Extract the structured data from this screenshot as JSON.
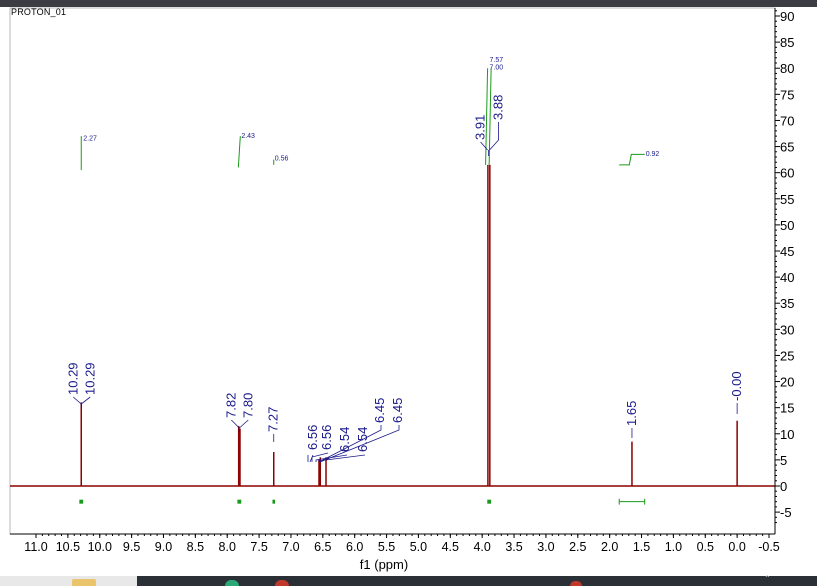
{
  "window": {
    "title": "PROTON_01"
  },
  "chart_data": {
    "type": "line",
    "xlabel": "f1 (ppm)",
    "ylabel": "",
    "xlim": [
      11.25,
      -0.75
    ],
    "ylim": [
      -7,
      91
    ],
    "x_ticks": [
      "11.0",
      "10.5",
      "10.0",
      "9.5",
      "9.0",
      "8.5",
      "8.0",
      "7.5",
      "7.0",
      "6.5",
      "6.0",
      "5.5",
      "5.0",
      "4.5",
      "4.0",
      "3.5",
      "3.0",
      "2.5",
      "2.0",
      "1.5",
      "1.0",
      "0.5",
      "0.0",
      "-0.5"
    ],
    "x_tick_values": [
      11.0,
      10.5,
      10.0,
      9.5,
      9.0,
      8.5,
      8.0,
      7.5,
      7.0,
      6.5,
      6.0,
      5.5,
      5.0,
      4.5,
      4.0,
      3.5,
      3.0,
      2.5,
      2.0,
      1.5,
      1.0,
      0.5,
      0.0,
      -0.5
    ],
    "y_ticks": [
      "90",
      "85",
      "80",
      "75",
      "70",
      "65",
      "60",
      "55",
      "50",
      "45",
      "40",
      "35",
      "30",
      "25",
      "20",
      "15",
      "10",
      "5",
      "0",
      "-5"
    ],
    "y_tick_values": [
      90,
      85,
      80,
      75,
      70,
      65,
      60,
      55,
      50,
      45,
      40,
      35,
      30,
      25,
      20,
      15,
      10,
      5,
      0,
      -5
    ],
    "grid": false,
    "peaks": [
      {
        "ppm": 10.29,
        "intensity": 16.0
      },
      {
        "ppm": 7.82,
        "intensity": 11.5
      },
      {
        "ppm": 7.8,
        "intensity": 11.0
      },
      {
        "ppm": 7.27,
        "intensity": 6.5
      },
      {
        "ppm": 6.56,
        "intensity": 5.0
      },
      {
        "ppm": 6.54,
        "intensity": 5.5
      },
      {
        "ppm": 6.45,
        "intensity": 5.5
      },
      {
        "ppm": 3.91,
        "intensity": 61.5
      },
      {
        "ppm": 3.88,
        "intensity": 61.5
      },
      {
        "ppm": 1.65,
        "intensity": 8.5
      },
      {
        "ppm": 0.0,
        "intensity": 12.5
      }
    ],
    "peak_label_groups": [
      {
        "labels": [
          "10.29",
          "10.29"
        ],
        "ppm": [
          10.29,
          10.29
        ]
      },
      {
        "labels": [
          "7.82",
          "7.80"
        ],
        "ppm": [
          7.82,
          7.8
        ]
      },
      {
        "labels": [
          "7.27"
        ],
        "ppm": [
          7.27
        ]
      },
      {
        "labels": [
          "6.56",
          "6.56",
          "6.54",
          "6.54",
          "6.45",
          "6.45"
        ],
        "ppm": [
          6.56,
          6.56,
          6.54,
          6.54,
          6.45,
          6.45
        ]
      },
      {
        "labels": [
          "3.91",
          "3.88"
        ],
        "ppm": [
          3.91,
          3.88
        ]
      },
      {
        "labels": [
          "1.65"
        ],
        "ppm": [
          1.65
        ]
      },
      {
        "labels": [
          "-0.00"
        ],
        "ppm": [
          0.0
        ]
      }
    ],
    "integrals": [
      {
        "value": "2.27",
        "from": 10.32,
        "to": 10.26
      },
      {
        "value": "2.43",
        "from": 7.84,
        "to": 7.78
      },
      {
        "value": "0.56",
        "from": 7.29,
        "to": 7.25
      },
      {
        "value": "7.57",
        "from": 3.92,
        "to": 3.9
      },
      {
        "value": "7.00",
        "from": 3.9,
        "to": 3.86
      },
      {
        "value": "0.92",
        "from": 1.85,
        "to": 1.45
      }
    ]
  },
  "colors": {
    "spectrum": "#8b0000",
    "peak_label": "#1a1a8c",
    "integral": "#1a9a1a",
    "axis": "#000000"
  },
  "taskbar": {
    "chevron_icon": "chevron-up-icon"
  }
}
